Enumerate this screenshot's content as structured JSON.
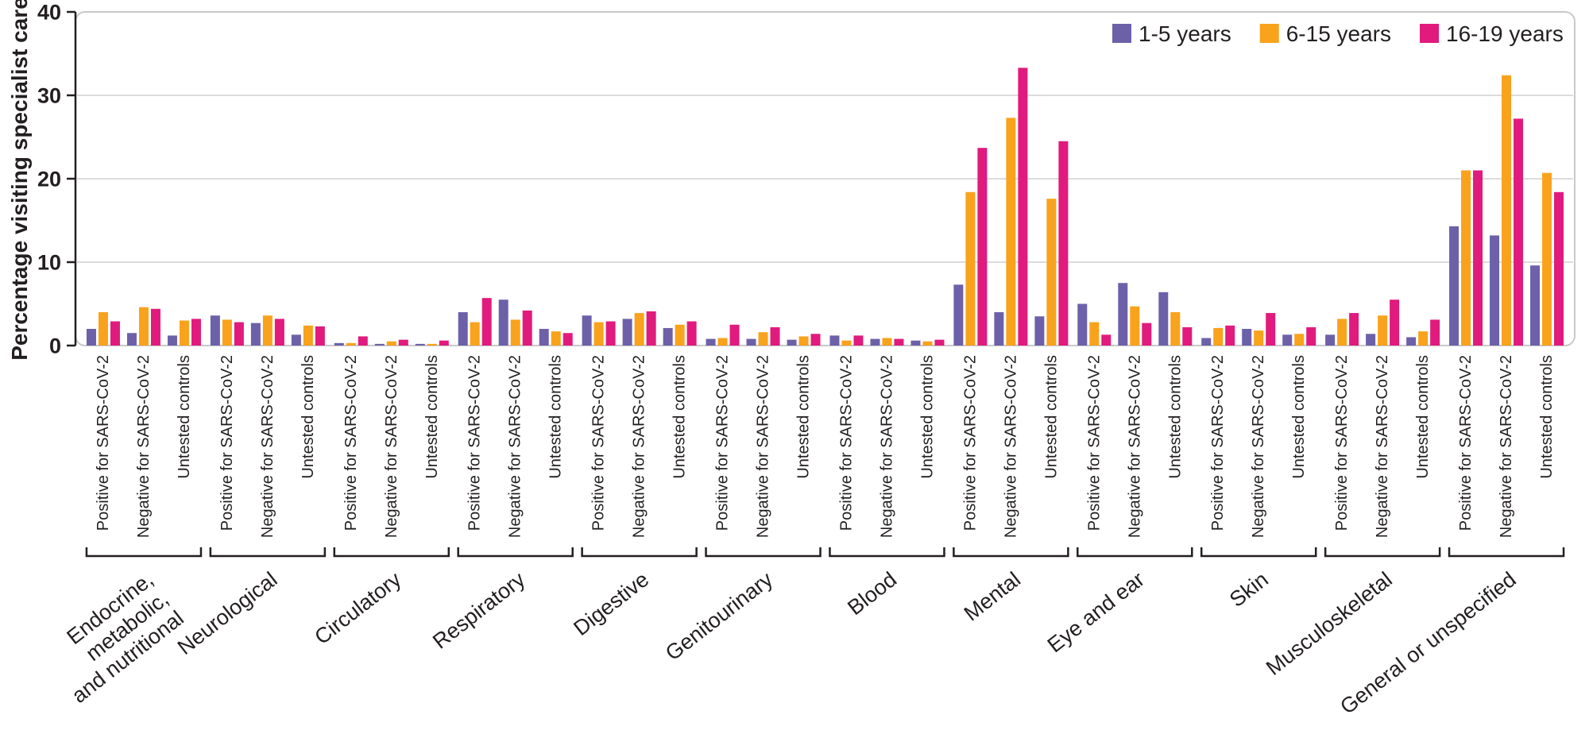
{
  "figure": {
    "background": "#ffffff",
    "text_color": "#231f20",
    "frame_color": "#c9c9c9",
    "grid_color": "#dcdcdc"
  },
  "chart_data": {
    "type": "bar",
    "title": "",
    "ylabel": "Percentage visiting specialist care",
    "xlabel": "",
    "ylim": [
      0,
      40
    ],
    "yticks": [
      0,
      10,
      20,
      30,
      40
    ],
    "grid": "horizontal gridlines at 10, 20, 30",
    "legend_position": "top-right",
    "values_unit": "percent",
    "series": [
      {
        "name": "1-5 years",
        "color": "#6C61A9"
      },
      {
        "name": "6-15 years",
        "color": "#F9A21C"
      },
      {
        "name": "16-19 years",
        "color": "#E11A7D"
      }
    ],
    "subgroups": [
      "Positive for SARS-CoV-2",
      "Negative for SARS-CoV-2",
      "Untested controls"
    ],
    "categories": [
      "Endocrine, metabolic, and nutritional",
      "Neurological",
      "Circulatory",
      "Respiratory",
      "Digestive",
      "Genitourinary",
      "Blood",
      "Mental",
      "Eye and ear",
      "Skin",
      "Musculoskeletal",
      "General or unspecified"
    ],
    "category_label_lines": [
      [
        "Endocrine,",
        "metabolic,",
        "and nutritional"
      ],
      [
        "Neurological"
      ],
      [
        "Circulatory"
      ],
      [
        "Respiratory"
      ],
      [
        "Digestive"
      ],
      [
        "Genitourinary"
      ],
      [
        "Blood"
      ],
      [
        "Mental"
      ],
      [
        "Eye and ear"
      ],
      [
        "Skin"
      ],
      [
        "Musculoskeletal"
      ],
      [
        "General or unspecified"
      ]
    ],
    "values": [
      [
        [
          2.0,
          4.0,
          2.9
        ],
        [
          1.5,
          4.6,
          4.4
        ],
        [
          1.2,
          3.0,
          3.2
        ]
      ],
      [
        [
          3.6,
          3.1,
          2.8
        ],
        [
          2.7,
          3.6,
          3.2
        ],
        [
          1.3,
          2.4,
          2.3
        ]
      ],
      [
        [
          0.3,
          0.3,
          1.1
        ],
        [
          0.2,
          0.5,
          0.7
        ],
        [
          0.2,
          0.2,
          0.6
        ]
      ],
      [
        [
          4.0,
          2.8,
          5.7
        ],
        [
          5.5,
          3.1,
          4.2
        ],
        [
          2.0,
          1.7,
          1.5
        ]
      ],
      [
        [
          3.6,
          2.8,
          2.9
        ],
        [
          3.2,
          3.9,
          4.1
        ],
        [
          2.1,
          2.5,
          2.9
        ]
      ],
      [
        [
          0.8,
          0.9,
          2.5
        ],
        [
          0.8,
          1.6,
          2.2
        ],
        [
          0.7,
          1.1,
          1.4
        ]
      ],
      [
        [
          1.2,
          0.6,
          1.2
        ],
        [
          0.8,
          0.9,
          0.8
        ],
        [
          0.6,
          0.5,
          0.7
        ]
      ],
      [
        [
          7.3,
          18.4,
          23.7
        ],
        [
          4.0,
          27.3,
          33.3
        ],
        [
          3.5,
          17.6,
          24.5
        ]
      ],
      [
        [
          5.0,
          2.8,
          1.3
        ],
        [
          7.5,
          4.7,
          2.7
        ],
        [
          6.4,
          4.0,
          2.2
        ]
      ],
      [
        [
          0.9,
          2.1,
          2.4
        ],
        [
          2.0,
          1.8,
          3.9
        ],
        [
          1.3,
          1.4,
          2.2
        ]
      ],
      [
        [
          1.3,
          3.2,
          3.9
        ],
        [
          1.4,
          3.6,
          5.5
        ],
        [
          1.0,
          1.7,
          3.1
        ]
      ],
      [
        [
          14.3,
          21.0,
          21.0
        ],
        [
          13.2,
          32.4,
          27.2
        ],
        [
          9.6,
          20.7,
          18.4
        ]
      ]
    ]
  }
}
